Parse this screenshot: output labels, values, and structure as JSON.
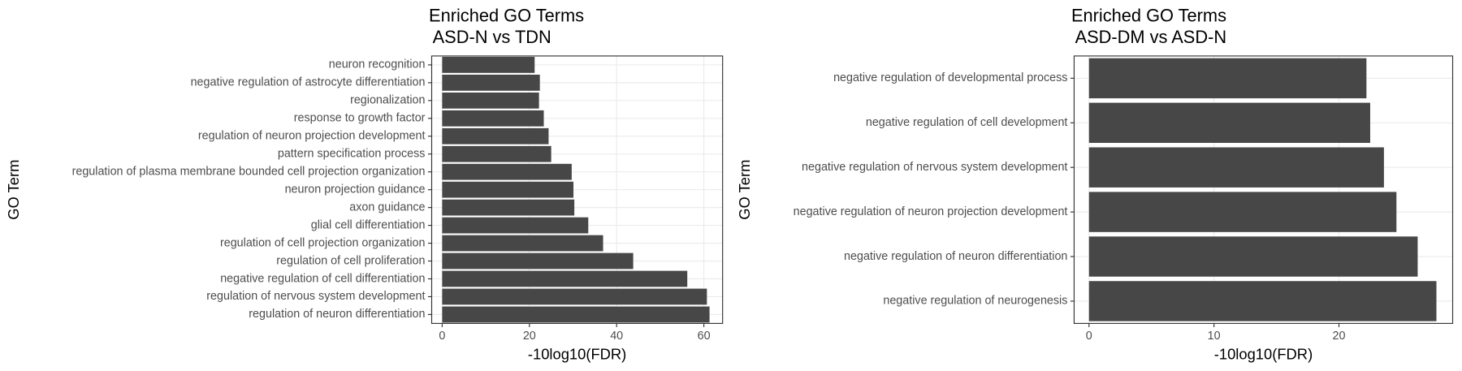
{
  "chart_data": [
    {
      "type": "bar",
      "orientation": "horizontal",
      "title": "Enriched GO Terms",
      "subtitle": "ASD-N vs TDN",
      "xlabel": "-10log10(FDR)",
      "ylabel": "GO Term",
      "color": "#474747",
      "grid": true,
      "categories": [
        "neuron recognition",
        "negative regulation of astrocyte differentiation",
        "regionalization",
        "response to growth factor",
        "regulation of neuron projection development",
        "pattern specification process",
        "regulation of plasma membrane bounded cell projection organization",
        "neuron projection guidance",
        "axon guidance",
        "glial cell differentiation",
        "regulation of cell projection organization",
        "regulation of cell proliferation",
        "negative regulation of cell differentiation",
        "regulation of nervous system development",
        "regulation of neuron differentiation"
      ],
      "values": [
        21.2,
        22.4,
        22.2,
        23.3,
        24.4,
        25.0,
        29.7,
        30.1,
        30.3,
        33.5,
        36.9,
        43.8,
        56.2,
        60.7,
        61.3
      ],
      "xlim": [
        -2.4,
        64.3
      ],
      "xticks": [
        0,
        20,
        40,
        60
      ]
    },
    {
      "type": "bar",
      "orientation": "horizontal",
      "title": "Enriched GO Terms",
      "subtitle": "ASD-DM vs ASD-N",
      "xlabel": "-10log10(FDR)",
      "ylabel": "GO Term",
      "color": "#474747",
      "grid": true,
      "categories": [
        "negative regulation of developmental process",
        "negative regulation of cell development",
        "negative regulation of nervous system development",
        "negative regulation of neuron projection development",
        "negative regulation of neuron differentiation",
        "negative regulation of neurogenesis"
      ],
      "values": [
        22.2,
        22.5,
        23.6,
        24.6,
        26.3,
        27.8
      ],
      "xlim": [
        -1.19,
        29.1
      ],
      "xticks": [
        0,
        10,
        20
      ]
    }
  ]
}
